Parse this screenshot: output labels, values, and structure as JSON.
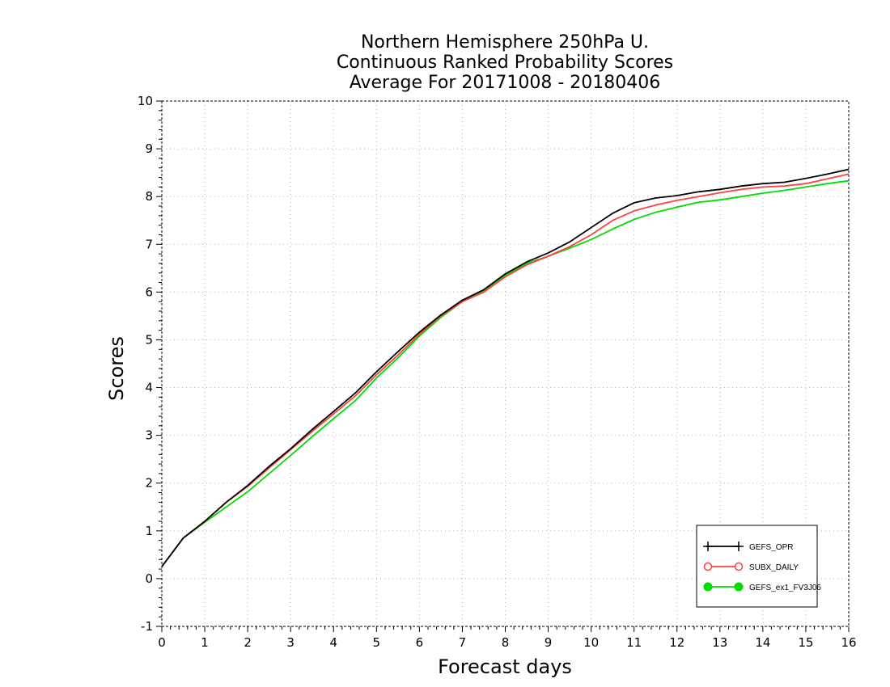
{
  "chart_data": {
    "type": "line",
    "title": [
      "Northern Hemisphere 250hPa U.",
      "Continuous Ranked Probability Scores",
      "Average For 20171008 - 20180406"
    ],
    "xlabel": "Forecast days",
    "ylabel": "Scores",
    "xlim": [
      0,
      16
    ],
    "ylim": [
      -1,
      10
    ],
    "x_ticks": [
      0,
      1,
      2,
      3,
      4,
      5,
      6,
      7,
      8,
      9,
      10,
      11,
      12,
      13,
      14,
      15,
      16
    ],
    "x_tick_labels": [
      "0",
      "1",
      "2",
      "3",
      "4",
      "5",
      "6",
      "7",
      "8",
      "9",
      "10",
      "11",
      "12",
      "13",
      "14",
      "15",
      "16"
    ],
    "y_ticks": [
      -1,
      0,
      1,
      2,
      3,
      4,
      5,
      6,
      7,
      8,
      9,
      10
    ],
    "y_tick_labels": [
      "-1",
      "0",
      "1",
      "2",
      "3",
      "4",
      "5",
      "6",
      "7",
      "8",
      "9",
      "10"
    ],
    "grid": true,
    "legend_position": "bottom-right",
    "x": [
      0,
      0.5,
      1,
      1.5,
      2,
      2.5,
      3,
      3.5,
      4,
      4.5,
      5,
      5.5,
      6,
      6.5,
      7,
      7.5,
      8,
      8.5,
      9,
      9.5,
      10,
      10.5,
      11,
      11.5,
      12,
      12.5,
      13,
      13.5,
      14,
      14.5,
      15,
      15.5,
      16
    ],
    "series": [
      {
        "name": "GEFS_OPR",
        "color": "#000000",
        "marker": "plus",
        "values": [
          0.25,
          0.85,
          1.2,
          1.6,
          1.95,
          2.35,
          2.72,
          3.12,
          3.5,
          3.88,
          4.33,
          4.75,
          5.16,
          5.52,
          5.83,
          6.05,
          6.38,
          6.63,
          6.82,
          7.05,
          7.35,
          7.65,
          7.87,
          7.97,
          8.02,
          8.1,
          8.15,
          8.22,
          8.27,
          8.3,
          8.38,
          8.47,
          8.57
        ]
      },
      {
        "name": "SUBX_DAILY",
        "color": "#ff4040",
        "marker": "open-circle",
        "values": [
          0.25,
          0.85,
          1.2,
          1.6,
          1.93,
          2.32,
          2.7,
          3.08,
          3.45,
          3.82,
          4.27,
          4.68,
          5.12,
          5.5,
          5.8,
          6.0,
          6.32,
          6.57,
          6.75,
          6.95,
          7.2,
          7.5,
          7.7,
          7.82,
          7.92,
          8.0,
          8.08,
          8.15,
          8.2,
          8.22,
          8.27,
          8.37,
          8.47
        ]
      },
      {
        "name": "GEFS_ex1_FV3J06",
        "color": "#00dd00",
        "marker": "filled-circle",
        "values": [
          0.25,
          0.85,
          1.18,
          1.5,
          1.82,
          2.2,
          2.58,
          2.97,
          3.35,
          3.72,
          4.2,
          4.62,
          5.08,
          5.47,
          5.8,
          6.03,
          6.35,
          6.6,
          6.75,
          6.92,
          7.1,
          7.32,
          7.52,
          7.67,
          7.78,
          7.88,
          7.93,
          8.0,
          8.07,
          8.13,
          8.2,
          8.27,
          8.33
        ]
      }
    ]
  }
}
